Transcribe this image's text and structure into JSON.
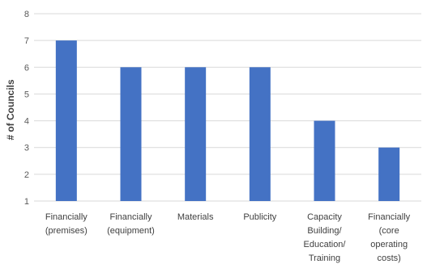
{
  "chart_data": {
    "type": "bar",
    "title": "",
    "xlabel": "",
    "ylabel": "# of Councils",
    "ylim": [
      1,
      8
    ],
    "yticks": [
      1,
      2,
      3,
      4,
      5,
      6,
      7,
      8
    ],
    "grid": true,
    "legend": "none",
    "bar_color": "#4472c4",
    "categories": [
      [
        "Financially",
        "(premises)"
      ],
      [
        "Financially",
        "(equipment)"
      ],
      [
        "Materials"
      ],
      [
        "Publicity"
      ],
      [
        "Capacity",
        "Building/",
        "Education/",
        "Training"
      ],
      [
        "Financially",
        "(core",
        "operating",
        "costs)"
      ]
    ],
    "values": [
      7,
      6,
      6,
      6,
      4,
      3
    ]
  }
}
